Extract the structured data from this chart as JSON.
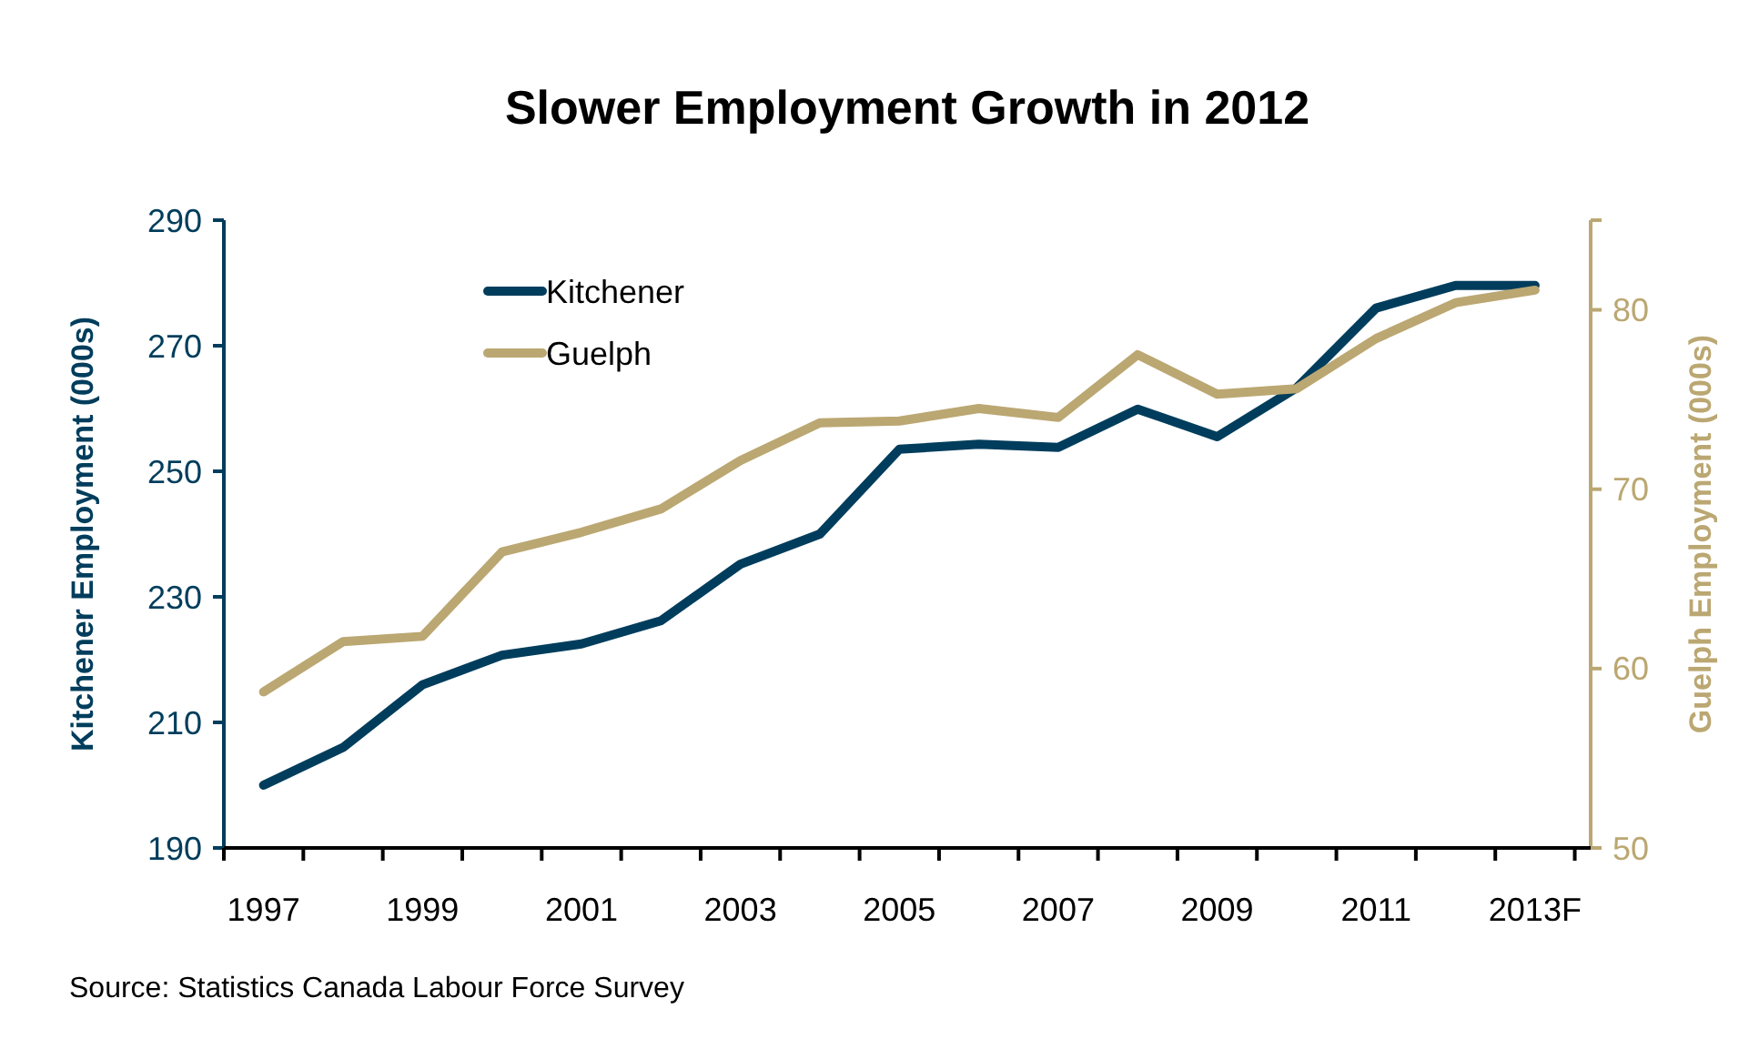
{
  "chart_data": {
    "type": "line",
    "title": "Slower Employment Growth in 2012",
    "categories": [
      "1997",
      null,
      "1999",
      null,
      "2001",
      null,
      "2003",
      null,
      "2005",
      null,
      "2007",
      null,
      "2009",
      null,
      "2011",
      null,
      "2013F"
    ],
    "series": [
      {
        "name": "Kitchener",
        "color": "#003d5c",
        "values": [
          200,
          206,
          216,
          220.7,
          222.5,
          226.2,
          235.2,
          240,
          253.5,
          254.3,
          253.8,
          259.9,
          255.5,
          263.3,
          276,
          279.6,
          279.6
        ]
      },
      {
        "name": "Guelph",
        "color": "#bba772",
        "axis": "y2",
        "values": [
          58.7,
          61.5,
          61.8,
          66.5,
          67.6,
          68.9,
          71.6,
          73.7,
          73.8,
          74.5,
          74.0,
          77.5,
          75.3,
          75.6,
          78.4,
          80.4,
          81.1
        ]
      }
    ],
    "ylabel": "Kitchener Employment (000s)",
    "y2label": "Guelph Employment (000s)",
    "ylim": [
      190,
      290
    ],
    "yticks": [
      190,
      210,
      230,
      250,
      270,
      290
    ],
    "y2lim": [
      50,
      85
    ],
    "y2ticks": [
      50,
      60,
      70,
      80,
      {
        "value": 85,
        "label": null
      }
    ],
    "legend": "top left",
    "grid": false,
    "annotations": [
      "Source:  Statistics Canada Labour Force Survey"
    ]
  }
}
